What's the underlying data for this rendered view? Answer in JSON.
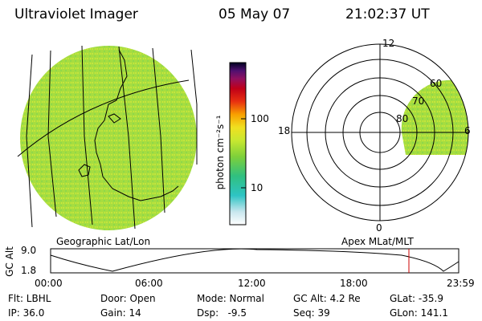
{
  "header": {
    "instrument": "Ultraviolet Imager",
    "date": "05 May 07",
    "time": "21:02:37 UT"
  },
  "colorbar": {
    "unit_label": "photon cm⁻²s⁻¹",
    "ticks": [
      "100",
      "10"
    ]
  },
  "panels": {
    "left_caption": "Geographic Lat/Lon",
    "right_caption": "Apex MLat/MLT"
  },
  "polar": {
    "mlt_labels": [
      "12",
      "18",
      "6",
      "0"
    ],
    "lat_labels": [
      "60",
      "70",
      "80"
    ]
  },
  "altitude_plot": {
    "ylabel": "GC Alt",
    "y_ticks": [
      "9.0",
      "1.8"
    ],
    "x_ticks": [
      "00:00",
      "06:00",
      "12:00",
      "18:00",
      "23:59"
    ]
  },
  "status": {
    "filter": "Flt: LBHL",
    "ip": "IP: 36.0",
    "door": "Door: Open",
    "gain": "Gain: 14",
    "mode": "Mode: Normal",
    "dsp": "Dsp:   -9.5",
    "gc_alt": "GC Alt: 4.2 Re",
    "seq": "Seq: 39",
    "glat": "GLat: -35.9",
    "glon": "GLon: 141.1"
  },
  "colors": {
    "emission": "#9fdc3c",
    "marker": "#cc0000"
  }
}
